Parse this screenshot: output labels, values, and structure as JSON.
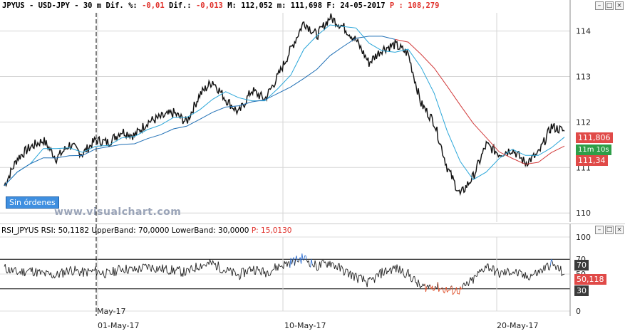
{
  "price_title": {
    "symbol": "JPYUS",
    "dash1": "-",
    "pair": "USD-JPY",
    "dash2": "-",
    "timeframe": "30 m",
    "diff_pct_label": "Dif. %:",
    "diff_pct_value": "-0,01",
    "diff_label": "Dif.:",
    "diff_value": "-0,013",
    "max_label": "M:",
    "max_value": "112,052",
    "min_label": "m:",
    "min_value": "111,698",
    "date_label": "F:",
    "date_value": "24-05-2017",
    "p_label": "P :",
    "p_value": "108,279"
  },
  "rsi_title": {
    "name": "RSI_JPYUS",
    "rsi_label": "RSI:",
    "rsi_value": "50,1182",
    "upper_label": "UpperBand:",
    "upper_value": "70,0000",
    "lower_label": "LowerBand:",
    "lower_value": "30,0000",
    "p_label": "P:",
    "p_value": "15,0130"
  },
  "window_buttons": {
    "minimize": "–",
    "maximize": "□",
    "close": "×"
  },
  "price_axis": [
    "114",
    "113",
    "112",
    "111",
    "110"
  ],
  "rsi_axis": [
    "100",
    "70",
    "50",
    "30",
    "0"
  ],
  "price_tags": {
    "last_price": "111,806",
    "timer": "11m 10s",
    "ma_value": "111,34"
  },
  "rsi_tags": {
    "upper": "70",
    "current": "50,118",
    "lower": "30"
  },
  "date_axis": {
    "month_marker": "May-17",
    "d1": "01-May-17",
    "d2": "10-May-17",
    "d3": "20-May-17"
  },
  "orders_button": "Sin órdenes",
  "watermark": "www.visualchart.com",
  "colors": {
    "price": "#000000",
    "ma_fast": "#2aa6d9",
    "ma_slow_blue": "#1f6fb5",
    "ma_slow_red": "#d23c3c",
    "rsi_up": "#2f6fd0",
    "rsi_down": "#e0502a",
    "last_tag": "#e04a48",
    "timer_tag": "#2e9e48",
    "ma_tag": "#e04a48"
  },
  "chart_data": {
    "type": "line",
    "price_ylim": [
      109.8,
      114.4
    ],
    "rsi_ylim": [
      0,
      100
    ],
    "series": [
      {
        "name": "USD-JPY",
        "values": [
          110.6,
          111.2,
          111.45,
          111.6,
          111.2,
          111.5,
          111.3,
          111.6,
          111.55,
          111.8,
          111.7,
          112.0,
          112.1,
          112.2,
          112.0,
          112.6,
          112.9,
          112.5,
          112.2,
          112.7,
          112.5,
          113.0,
          113.6,
          114.2,
          113.9,
          114.3,
          114.1,
          113.8,
          113.3,
          113.6,
          113.7,
          113.5,
          112.4,
          112.0,
          111.0,
          110.4,
          110.8,
          111.5,
          111.3,
          111.4,
          111.1,
          111.3,
          111.9,
          111.8
        ]
      }
    ],
    "rsi": [
      58,
      52,
      55,
      50,
      48,
      56,
      52,
      54,
      50,
      58,
      55,
      60,
      57,
      55,
      52,
      62,
      64,
      55,
      48,
      58,
      52,
      60,
      66,
      72,
      60,
      66,
      55,
      46,
      38,
      52,
      58,
      50,
      32,
      34,
      28,
      28,
      42,
      62,
      50,
      54,
      46,
      52,
      64,
      50
    ]
  }
}
